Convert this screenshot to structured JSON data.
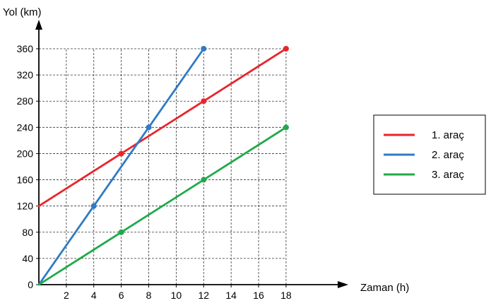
{
  "chart_data": {
    "type": "line",
    "xlabel": "Zaman (h)",
    "ylabel": "Yol (km)",
    "xlim": [
      0,
      18
    ],
    "ylim": [
      0,
      360
    ],
    "x_ticks": [
      2,
      4,
      6,
      8,
      10,
      12,
      14,
      16,
      18
    ],
    "y_ticks": [
      0,
      40,
      80,
      120,
      160,
      200,
      240,
      280,
      320,
      360
    ],
    "grid": true,
    "legend_position": "right",
    "series": [
      {
        "name": "1. araç",
        "color": "#e8252b",
        "x": [
          0,
          6,
          12,
          18
        ],
        "y": [
          120,
          200,
          280,
          360
        ],
        "markers": [
          6,
          12,
          18
        ]
      },
      {
        "name": "2. araç",
        "color": "#2f7bc4",
        "x": [
          0,
          4,
          8,
          12
        ],
        "y": [
          0,
          120,
          240,
          360
        ],
        "markers": [
          4,
          8,
          12
        ]
      },
      {
        "name": "3. araç",
        "color": "#1faa4b",
        "x": [
          0,
          6,
          12,
          18
        ],
        "y": [
          0,
          80,
          160,
          240
        ],
        "markers": [
          6,
          12,
          18
        ]
      }
    ]
  }
}
